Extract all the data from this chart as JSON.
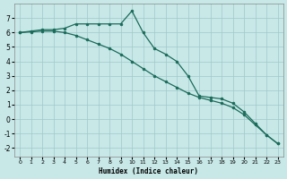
{
  "xlabel": "Humidex (Indice chaleur)",
  "ylabel": "",
  "bg_color": "#c8e8e8",
  "grid_color": "#a0c8c8",
  "line_color": "#1a6b5a",
  "xlim": [
    -0.5,
    23.5
  ],
  "ylim": [
    -2.6,
    8.0
  ],
  "xticks": [
    0,
    1,
    2,
    3,
    4,
    5,
    6,
    7,
    8,
    9,
    10,
    11,
    12,
    13,
    14,
    15,
    16,
    17,
    18,
    19,
    20,
    21,
    22,
    23
  ],
  "yticks": [
    -2,
    -1,
    0,
    1,
    2,
    3,
    4,
    5,
    6,
    7
  ],
  "line1_x": [
    0,
    1,
    2,
    3,
    4,
    5,
    6,
    7,
    8,
    9,
    10,
    11,
    12,
    13,
    14,
    15,
    16,
    17,
    18,
    19,
    20,
    21,
    22,
    23
  ],
  "line1_y": [
    6.0,
    6.1,
    6.2,
    6.2,
    6.3,
    6.6,
    6.6,
    6.6,
    6.6,
    6.6,
    7.5,
    6.0,
    4.9,
    4.5,
    4.0,
    3.0,
    1.6,
    1.5,
    1.4,
    1.1,
    0.5,
    -0.3,
    -1.1,
    -1.7
  ],
  "line2_x": [
    0,
    1,
    2,
    3,
    4,
    5,
    6,
    7,
    8,
    9,
    10,
    11,
    12,
    13,
    14,
    15,
    16,
    17,
    18,
    19,
    20,
    21,
    22,
    23
  ],
  "line2_y": [
    6.0,
    6.05,
    6.1,
    6.1,
    6.0,
    5.8,
    5.5,
    5.2,
    4.9,
    4.5,
    4.0,
    3.5,
    3.0,
    2.6,
    2.2,
    1.8,
    1.5,
    1.3,
    1.1,
    0.8,
    0.3,
    -0.4,
    -1.1,
    -1.7
  ],
  "figsize": [
    3.2,
    2.0
  ],
  "dpi": 100,
  "marker": "o",
  "markersize": 2.0,
  "linewidth": 0.9,
  "xlabel_fontsize": 5.5,
  "tick_fontsize_x": 4.5,
  "tick_fontsize_y": 5.5
}
